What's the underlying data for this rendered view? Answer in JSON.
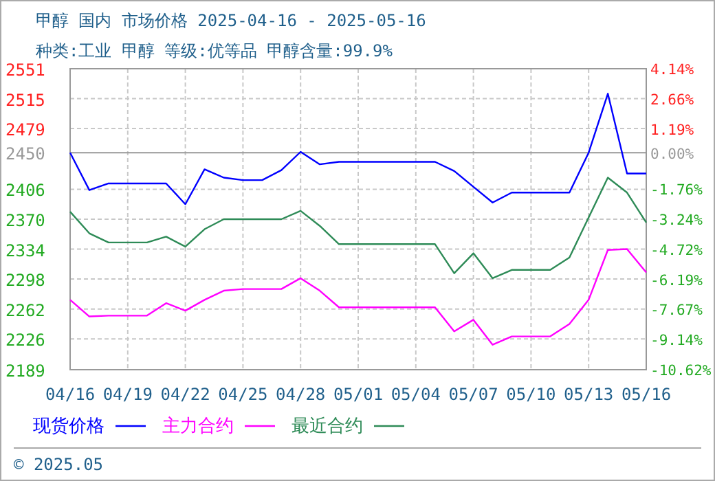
{
  "chart_data": {
    "type": "line",
    "title": "甲醇 国内 市场价格 2025-04-16 - 2025-05-16",
    "subtitle": "种类:工业 甲醇  等级:优等品  甲醇含量:99.9%",
    "x": [
      "2025-04-16",
      "2025-04-17",
      "2025-04-18",
      "2025-04-19",
      "2025-04-20",
      "2025-04-21",
      "2025-04-22",
      "2025-04-23",
      "2025-04-24",
      "2025-04-25",
      "2025-04-26",
      "2025-04-27",
      "2025-04-28",
      "2025-04-29",
      "2025-04-30",
      "2025-05-01",
      "2025-05-02",
      "2025-05-03",
      "2025-05-04",
      "2025-05-05",
      "2025-05-06",
      "2025-05-07",
      "2025-05-08",
      "2025-05-09",
      "2025-05-10",
      "2025-05-11",
      "2025-05-12",
      "2025-05-13",
      "2025-05-14",
      "2025-05-15",
      "2025-05-16"
    ],
    "series": [
      {
        "name": "现货价格",
        "color": "#0000ff",
        "values": [
          2450,
          2405,
          2413,
          2413,
          2413,
          2413,
          2388,
          2430,
          2420,
          2417,
          2417,
          2429,
          2451,
          2436,
          2439,
          2439,
          2439,
          2439,
          2439,
          2439,
          2428,
          2409,
          2390,
          2402,
          2402,
          2402,
          2402,
          2450,
          2521,
          2425,
          2425
        ]
      },
      {
        "name": "主力合约",
        "color": "#ff00ff",
        "values": [
          2273,
          2253,
          2254,
          2254,
          2254,
          2269,
          2260,
          2273,
          2284,
          2286,
          2286,
          2286,
          2299,
          2284,
          2264,
          2264,
          2264,
          2264,
          2264,
          2264,
          2235,
          2249,
          2219,
          2229,
          2229,
          2229,
          2244,
          2273,
          2333,
          2334,
          2306
        ]
      },
      {
        "name": "最近合约",
        "color": "#2e8b57",
        "values": [
          2379,
          2353,
          2342,
          2342,
          2342,
          2349,
          2337,
          2358,
          2370,
          2370,
          2370,
          2370,
          2380,
          2362,
          2340,
          2340,
          2340,
          2340,
          2340,
          2340,
          2305,
          2329,
          2299,
          2309,
          2309,
          2309,
          2324,
          2372,
          2420,
          2402,
          2366
        ]
      }
    ],
    "xlim": [
      "2025-04-16",
      "2025-05-16"
    ],
    "xticks": [
      {
        "value": "2025-04-16",
        "label": "04/16"
      },
      {
        "value": "2025-04-19",
        "label": "04/19"
      },
      {
        "value": "2025-04-22",
        "label": "04/22"
      },
      {
        "value": "2025-04-25",
        "label": "04/25"
      },
      {
        "value": "2025-04-28",
        "label": "04/28"
      },
      {
        "value": "2025-05-01",
        "label": "05/01"
      },
      {
        "value": "2025-05-04",
        "label": "05/04"
      },
      {
        "value": "2025-05-07",
        "label": "05/07"
      },
      {
        "value": "2025-05-10",
        "label": "05/10"
      },
      {
        "value": "2025-05-13",
        "label": "05/13"
      },
      {
        "value": "2025-05-16",
        "label": "05/16"
      }
    ],
    "ylim": [
      2189,
      2551
    ],
    "yticks": [
      2551,
      2515,
      2479,
      2450,
      2406,
      2370,
      2334,
      2298,
      2262,
      2226,
      2189
    ],
    "y2lim": [
      -10.62,
      4.14
    ],
    "y2ticks": [
      {
        "value": 4.14,
        "label": "4.14%"
      },
      {
        "value": 2.66,
        "label": "2.66%"
      },
      {
        "value": 1.19,
        "label": "1.19%"
      },
      {
        "value": 0,
        "label": "0.00%"
      },
      {
        "value": -1.76,
        "label": "-1.76%"
      },
      {
        "value": -3.24,
        "label": "-3.24%"
      },
      {
        "value": -4.72,
        "label": "-4.72%"
      },
      {
        "value": -6.19,
        "label": "-6.19%"
      },
      {
        "value": -7.67,
        "label": "-7.67%"
      },
      {
        "value": -9.14,
        "label": "-9.14%"
      },
      {
        "value": -10.62,
        "label": "-10.62%"
      }
    ],
    "ref_lines": [
      {
        "axis": "y",
        "value": 2450,
        "color": "#999999"
      }
    ],
    "grid": true,
    "legend": "bottom",
    "line_style": "solid",
    "marker": "none",
    "annotations": [
      "© 2025.05"
    ]
  }
}
